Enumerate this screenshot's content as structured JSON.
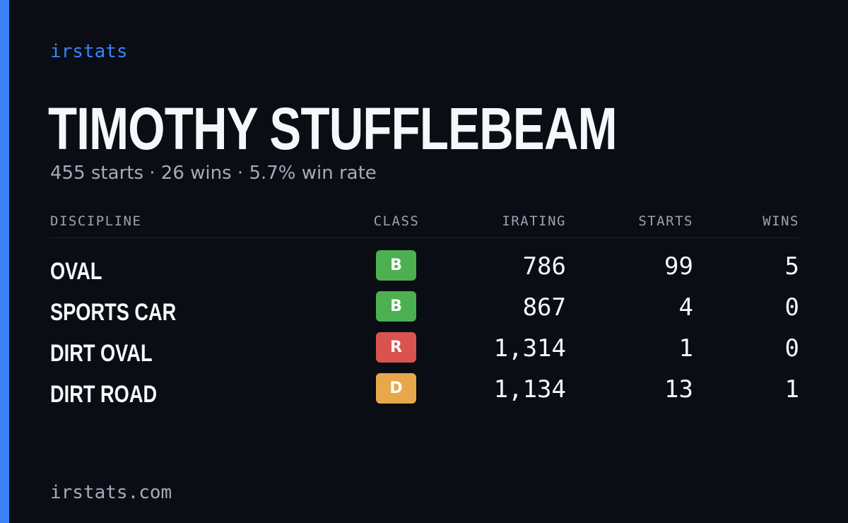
{
  "brand": "irstats",
  "driver": {
    "name": "TIMOTHY STUFFLEBEAM",
    "summary": "455 starts · 26 wins · 5.7% win rate"
  },
  "table": {
    "headers": {
      "discipline": "DISCIPLINE",
      "class": "CLASS",
      "irating": "IRATING",
      "starts": "STARTS",
      "wins": "WINS"
    },
    "rows": [
      {
        "discipline": "OVAL",
        "class": "B",
        "class_color": "#4caf50",
        "irating": "786",
        "starts": "99",
        "wins": "5"
      },
      {
        "discipline": "SPORTS CAR",
        "class": "B",
        "class_color": "#4caf50",
        "irating": "867",
        "starts": "4",
        "wins": "0"
      },
      {
        "discipline": "DIRT OVAL",
        "class": "R",
        "class_color": "#d9534f",
        "irating": "1,314",
        "starts": "1",
        "wins": "0"
      },
      {
        "discipline": "DIRT ROAD",
        "class": "D",
        "class_color": "#e8a84a",
        "irating": "1,134",
        "starts": "13",
        "wins": "1"
      }
    ]
  },
  "footer": {
    "domain": "irstats.com"
  },
  "colors": {
    "background": "#0a0d14",
    "accent": "#3b82f6"
  }
}
